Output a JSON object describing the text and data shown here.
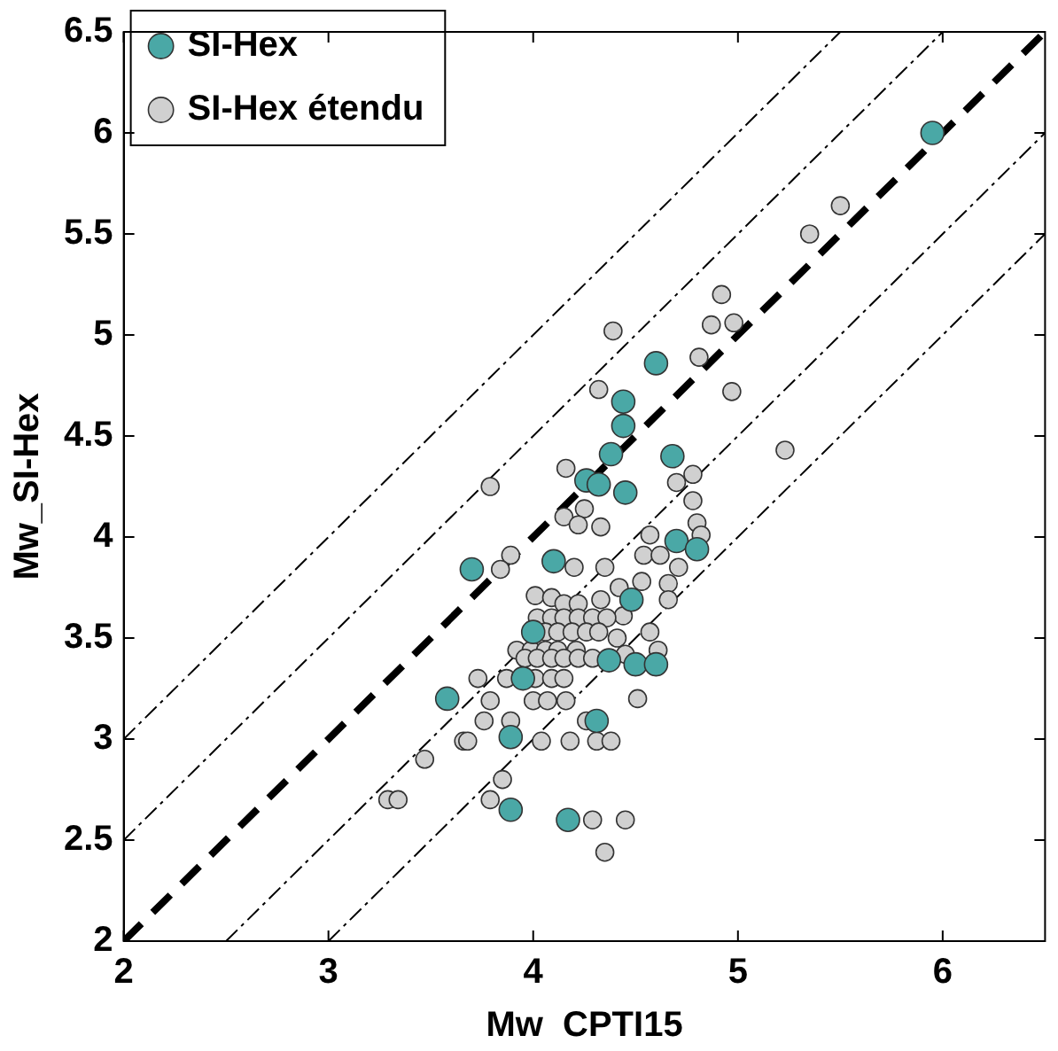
{
  "chart_data": {
    "type": "scatter",
    "xlabel": "Mw  CPTI15",
    "ylabel": "Mw_SI-Hex",
    "xlim": [
      2,
      6.5
    ],
    "xticks": [
      2,
      3,
      4,
      5,
      6
    ],
    "ylim": [
      2,
      6.5
    ],
    "yticks": [
      2,
      2.5,
      3,
      3.5,
      4,
      4.5,
      5,
      5.5,
      6,
      6.5
    ],
    "grid": false,
    "legend": "top left",
    "series": [
      {
        "name": "SI-Hex",
        "color": "#4aa8a6",
        "marker": "circle",
        "x": [
          5.95,
          4.6,
          4.44,
          4.44,
          4.38,
          4.26,
          4.32,
          4.45,
          4.68,
          4.7,
          4.8,
          4.1,
          3.7,
          4.48,
          4.0,
          4.37,
          4.5,
          4.6,
          3.95,
          3.58,
          4.31,
          3.89,
          3.89,
          4.17
        ],
        "values": [
          6.0,
          4.86,
          4.67,
          4.55,
          4.41,
          4.28,
          4.26,
          4.22,
          4.4,
          3.98,
          3.94,
          3.88,
          3.84,
          3.69,
          3.53,
          3.39,
          3.37,
          3.37,
          3.3,
          3.2,
          3.09,
          3.01,
          2.65,
          2.6
        ]
      },
      {
        "name": "SI-Hex étendu",
        "color": "#d0d0d0",
        "marker": "circle",
        "x": [
          5.5,
          5.35,
          4.92,
          4.87,
          4.98,
          4.39,
          4.81,
          4.97,
          4.32,
          5.23,
          4.16,
          3.79,
          4.78,
          4.7,
          4.25,
          4.78,
          4.15,
          4.22,
          4.33,
          4.8,
          4.57,
          4.82,
          4.54,
          4.62,
          3.89,
          3.84,
          4.2,
          4.35,
          4.71,
          4.42,
          4.53,
          4.66,
          4.66,
          4.01,
          4.09,
          4.15,
          4.22,
          4.33,
          4.44,
          4.57,
          4.02,
          4.09,
          4.15,
          4.22,
          4.29,
          4.36,
          4.06,
          4.12,
          4.19,
          4.26,
          4.32,
          4.41,
          3.92,
          3.99,
          4.06,
          4.12,
          4.21,
          3.96,
          4.02,
          4.09,
          4.15,
          4.22,
          4.29,
          4.45,
          4.61,
          4.01,
          4.09,
          4.15,
          3.87,
          3.73,
          4.0,
          4.07,
          4.16,
          3.79,
          4.51,
          3.76,
          3.89,
          4.26,
          3.66,
          3.68,
          4.04,
          4.18,
          4.31,
          4.38,
          3.47,
          3.85,
          3.79,
          3.29,
          3.34,
          4.29,
          4.45,
          4.35
        ],
        "values": [
          5.64,
          5.5,
          5.2,
          5.05,
          5.06,
          5.02,
          4.89,
          4.72,
          4.73,
          4.43,
          4.34,
          4.25,
          4.31,
          4.27,
          4.14,
          4.18,
          4.1,
          4.06,
          4.05,
          4.07,
          4.01,
          4.01,
          3.91,
          3.91,
          3.91,
          3.84,
          3.85,
          3.85,
          3.85,
          3.75,
          3.78,
          3.77,
          3.69,
          3.71,
          3.7,
          3.67,
          3.67,
          3.69,
          3.61,
          3.53,
          3.6,
          3.6,
          3.6,
          3.6,
          3.6,
          3.6,
          3.53,
          3.53,
          3.53,
          3.53,
          3.53,
          3.5,
          3.44,
          3.44,
          3.44,
          3.44,
          3.44,
          3.4,
          3.4,
          3.4,
          3.4,
          3.4,
          3.4,
          3.42,
          3.44,
          3.3,
          3.3,
          3.3,
          3.3,
          3.3,
          3.19,
          3.19,
          3.19,
          3.19,
          3.2,
          3.09,
          3.09,
          3.09,
          2.99,
          2.99,
          2.99,
          2.99,
          2.99,
          2.99,
          2.9,
          2.8,
          2.7,
          2.7,
          2.7,
          2.6,
          2.6,
          2.44
        ]
      },
      {
        "type": "line",
        "color": "#000000",
        "line_style": "dashed",
        "x": [
          2,
          6.5
        ],
        "values": [
          2,
          6.5
        ]
      },
      {
        "type": "line",
        "color": "#000000",
        "line_style": "dotted",
        "x": [
          2,
          5.5
        ],
        "values": [
          3,
          6.5
        ]
      },
      {
        "type": "line",
        "color": "#000000",
        "line_style": "dotted",
        "x": [
          2,
          6
        ],
        "values": [
          2.5,
          6.5
        ]
      },
      {
        "type": "line",
        "color": "#000000",
        "line_style": "dotted",
        "x": [
          2.5,
          6.5
        ],
        "values": [
          2,
          6
        ]
      },
      {
        "type": "line",
        "color": "#000000",
        "line_style": "dotted",
        "x": [
          3,
          6.5
        ],
        "values": [
          2,
          5.5
        ]
      }
    ]
  }
}
